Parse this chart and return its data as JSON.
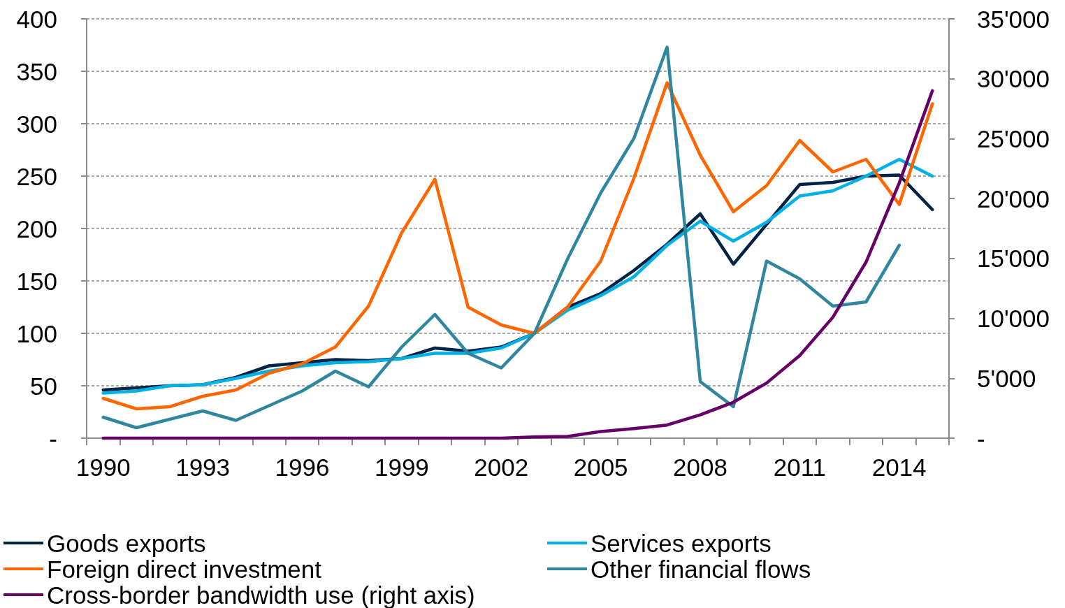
{
  "chart_data": {
    "type": "line",
    "categories": [
      "1990",
      null,
      null,
      "1993",
      null,
      null,
      "1996",
      null,
      null,
      "1999",
      null,
      null,
      "2002",
      null,
      null,
      "2005",
      null,
      null,
      "2008",
      null,
      null,
      "2011",
      null,
      null,
      "2014",
      null
    ],
    "series": [
      {
        "name": "Goods exports",
        "color": "#002346",
        "values": [
          46,
          48,
          50,
          51,
          58,
          69,
          72,
          75,
          74,
          76,
          86,
          83,
          87,
          100,
          125,
          138,
          160,
          185,
          214,
          166,
          204,
          242,
          244,
          250,
          251,
          218
        ]
      },
      {
        "name": "Services exports",
        "color": "#00b0e6",
        "values": [
          43,
          45,
          50,
          51,
          57,
          64,
          69,
          72,
          73,
          76,
          81,
          81,
          86,
          100,
          122,
          136,
          154,
          184,
          207,
          188,
          206,
          231,
          236,
          250,
          266,
          250
        ]
      },
      {
        "name": "Foreign direct investment",
        "color": "#ff6600",
        "values": [
          38,
          28,
          30,
          40,
          46,
          62,
          71,
          87,
          126,
          196,
          247,
          125,
          108,
          100,
          125,
          169,
          248,
          339,
          270,
          216,
          241,
          284,
          254,
          266,
          223,
          319
        ]
      },
      {
        "name": "Other financial flows",
        "color": "#2e879f",
        "values": [
          20,
          10,
          18,
          26,
          17,
          31,
          45,
          64,
          49,
          87,
          118,
          81,
          67,
          100,
          171,
          234,
          286,
          373,
          54,
          30,
          169,
          152,
          126,
          130,
          184,
          null
        ]
      },
      {
        "name": "Cross-border bandwidth use (right axis)",
        "color": "#660066",
        "axis": "y2",
        "values": [
          0,
          0,
          0,
          0,
          0,
          0,
          0,
          0,
          0,
          0,
          0,
          0,
          0,
          100,
          150,
          550,
          800,
          1100,
          1950,
          3000,
          4600,
          6900,
          10100,
          14700,
          21300,
          29000
        ]
      }
    ],
    "ylim": [
      0,
      400
    ],
    "yticks": [
      {
        "value": 0,
        "label": "-"
      },
      50,
      100,
      150,
      200,
      250,
      300,
      350,
      400
    ],
    "y2lim": [
      0,
      35000
    ],
    "y2ticks": [
      {
        "value": 0,
        "label": "-"
      },
      {
        "value": 5000,
        "label": "5'000"
      },
      {
        "value": 10000,
        "label": "10'000"
      },
      {
        "value": 15000,
        "label": "15'000"
      },
      {
        "value": 20000,
        "label": "20'000"
      },
      {
        "value": 25000,
        "label": "25'000"
      },
      {
        "value": 30000,
        "label": "30'000"
      },
      {
        "value": 35000,
        "label": "35'000"
      }
    ],
    "grid": "y",
    "legend": "bottom",
    "marker": "none",
    "line_style": "solid"
  }
}
